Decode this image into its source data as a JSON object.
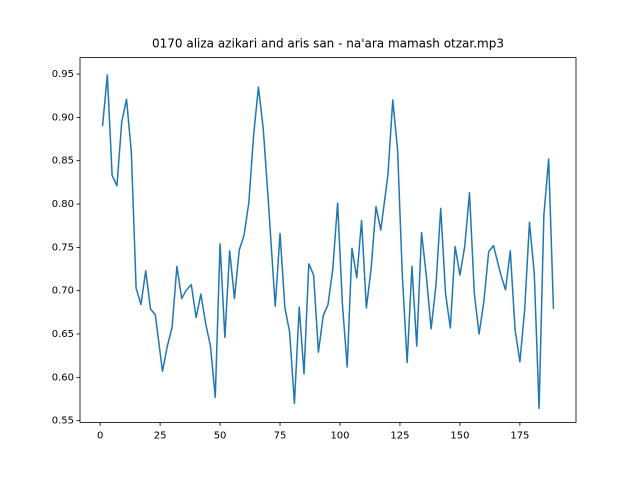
{
  "chart_data": {
    "type": "line",
    "title": "0170 aliza azikari and aris san - na'ara mamash otzar.mp3",
    "x": [
      1,
      3,
      5,
      7,
      9,
      11,
      13,
      15,
      17,
      19,
      21,
      23,
      26,
      28,
      30,
      32,
      34,
      36,
      38,
      40,
      42,
      44,
      46,
      48,
      50,
      52,
      54,
      56,
      58,
      60,
      62,
      64,
      66,
      68,
      70,
      73,
      75,
      77,
      79,
      81,
      83,
      85,
      87,
      89,
      91,
      93,
      95,
      97,
      99,
      101,
      103,
      105,
      107,
      109,
      111,
      113,
      115,
      117,
      120,
      122,
      124,
      126,
      128,
      130,
      132,
      134,
      136,
      138,
      140,
      142,
      144,
      146,
      148,
      150,
      152,
      154,
      156,
      158,
      160,
      162,
      164,
      167,
      169,
      171,
      173,
      175,
      177,
      179,
      181,
      183,
      185,
      187,
      189
    ],
    "series": [
      {
        "color": "#1f77b4",
        "values": [
          0.89,
          0.949,
          0.833,
          0.821,
          0.895,
          0.921,
          0.86,
          0.703,
          0.684,
          0.723,
          0.679,
          0.672,
          0.607,
          0.636,
          0.658,
          0.728,
          0.691,
          0.701,
          0.707,
          0.669,
          0.696,
          0.662,
          0.636,
          0.577,
          0.754,
          0.646,
          0.746,
          0.691,
          0.747,
          0.764,
          0.802,
          0.88,
          0.935,
          0.887,
          0.808,
          0.682,
          0.766,
          0.681,
          0.652,
          0.57,
          0.681,
          0.604,
          0.731,
          0.718,
          0.629,
          0.671,
          0.684,
          0.725,
          0.801,
          0.685,
          0.612,
          0.749,
          0.715,
          0.781,
          0.68,
          0.726,
          0.797,
          0.77,
          0.834,
          0.92,
          0.863,
          0.717,
          0.617,
          0.728,
          0.636,
          0.767,
          0.717,
          0.656,
          0.706,
          0.795,
          0.697,
          0.657,
          0.751,
          0.718,
          0.751,
          0.813,
          0.697,
          0.65,
          0.688,
          0.745,
          0.752,
          0.719,
          0.701,
          0.746,
          0.655,
          0.618,
          0.678,
          0.779,
          0.72,
          0.564,
          0.787,
          0.852,
          0.679
        ]
      }
    ],
    "xlim": [
      -8.4,
      198.4
    ],
    "xticks": [
      0,
      25,
      50,
      75,
      100,
      125,
      150,
      175
    ],
    "ylim": [
      0.548,
      0.969
    ],
    "yticks": [
      0.55,
      {
        "value": 0.6,
        "label": "0.60"
      },
      0.65,
      {
        "value": 0.7,
        "label": "0.70"
      },
      0.75,
      {
        "value": 0.8,
        "label": "0.80"
      },
      0.85,
      {
        "value": 0.9,
        "label": "0.90"
      },
      0.95
    ]
  }
}
